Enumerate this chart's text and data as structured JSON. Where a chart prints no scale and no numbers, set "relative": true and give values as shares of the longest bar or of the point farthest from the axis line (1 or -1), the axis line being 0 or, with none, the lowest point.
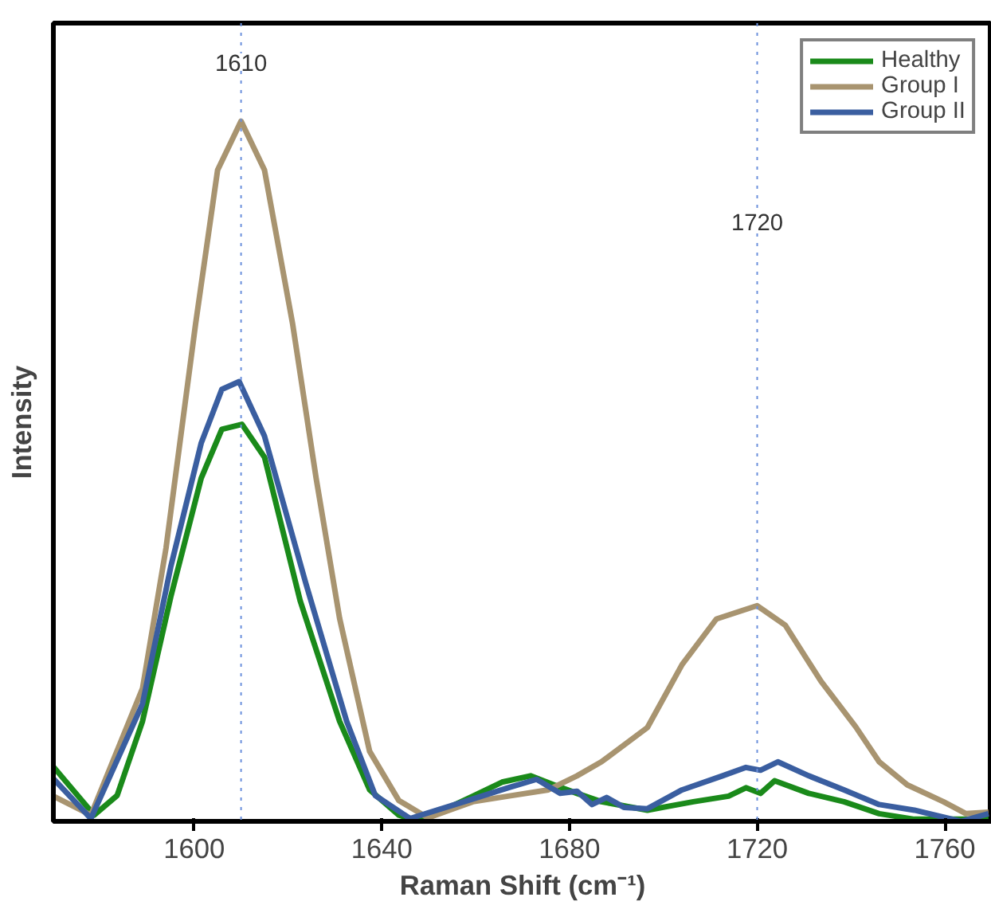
{
  "chart_data": {
    "type": "line",
    "relative": true,
    "xlabel": "Raman Shift (cm⁻¹)",
    "ylabel": "Intensity",
    "xlim": [
      1570,
      1770
    ],
    "xticks": [
      1600,
      1640,
      1680,
      1720,
      1760
    ],
    "grid": false,
    "legend": "top right",
    "marker": "none",
    "line_style": "solid",
    "series": [
      {
        "name": "Healthy",
        "color": "#1a8a1a",
        "x": [
          1570,
          1578.7,
          1583.6,
          1589,
          1595,
          1601.5,
          1605.9,
          1610.2,
          1615,
          1622.6,
          1631,
          1637.4,
          1643.6,
          1648,
          1659.4,
          1665.6,
          1671.7,
          1676.7,
          1681.6,
          1686.8,
          1696.6,
          1706.4,
          1713.9,
          1717.6,
          1720.7,
          1723.7,
          1731,
          1738.5,
          1746,
          1753.5,
          1769.3
        ],
        "values": [
          0.078,
          0.009,
          0.037,
          0.143,
          0.32,
          0.49,
          0.56,
          0.567,
          0.52,
          0.315,
          0.143,
          0.045,
          0.009,
          0.0,
          0.036,
          0.056,
          0.065,
          0.052,
          0.04,
          0.028,
          0.016,
          0.028,
          0.036,
          0.048,
          0.04,
          0.058,
          0.04,
          0.028,
          0.011,
          0.003,
          0.003
        ]
      },
      {
        "name": "Group I",
        "color": "#a89470",
        "x": [
          1570,
          1578,
          1589,
          1594,
          1600.3,
          1605,
          1610,
          1615,
          1621,
          1626,
          1631,
          1637.4,
          1643.6,
          1649.8,
          1659.4,
          1666.9,
          1675.5,
          1681.6,
          1686.8,
          1696.6,
          1704,
          1711.3,
          1720,
          1726,
          1733.6,
          1741,
          1746,
          1752,
          1759.7,
          1764.5,
          1769.3
        ],
        "values": [
          0.036,
          0.009,
          0.19,
          0.39,
          0.71,
          0.93,
          1.0,
          0.93,
          0.71,
          0.49,
          0.29,
          0.1,
          0.03,
          0.005,
          0.028,
          0.036,
          0.045,
          0.065,
          0.085,
          0.134,
          0.224,
          0.289,
          0.308,
          0.28,
          0.2,
          0.135,
          0.085,
          0.052,
          0.028,
          0.011,
          0.013
        ]
      },
      {
        "name": "Group II",
        "color": "#3a5ea0",
        "x": [
          1570,
          1578,
          1589,
          1595,
          1601.5,
          1605.9,
          1609.6,
          1615,
          1623.8,
          1632.5,
          1638.6,
          1646,
          1659.4,
          1666.9,
          1673,
          1678,
          1681.6,
          1684.8,
          1687.9,
          1691.6,
          1696.6,
          1704,
          1712.6,
          1717.6,
          1720.7,
          1724.4,
          1731,
          1738.5,
          1746,
          1753.5,
          1763.4,
          1769.3
        ],
        "values": [
          0.061,
          0.004,
          0.168,
          0.363,
          0.54,
          0.617,
          0.628,
          0.55,
          0.34,
          0.143,
          0.037,
          0.004,
          0.032,
          0.048,
          0.06,
          0.04,
          0.043,
          0.024,
          0.034,
          0.02,
          0.018,
          0.045,
          0.065,
          0.077,
          0.073,
          0.085,
          0.065,
          0.045,
          0.024,
          0.016,
          0.0,
          0.011
        ]
      }
    ],
    "ref_lines": [
      {
        "axis": "x",
        "value": 1610,
        "label": "1610",
        "color": "#6a8fdc",
        "line_style": "dotted"
      },
      {
        "axis": "x",
        "value": 1720,
        "label": "1720",
        "color": "#6a8fdc",
        "line_style": "dotted"
      }
    ]
  }
}
